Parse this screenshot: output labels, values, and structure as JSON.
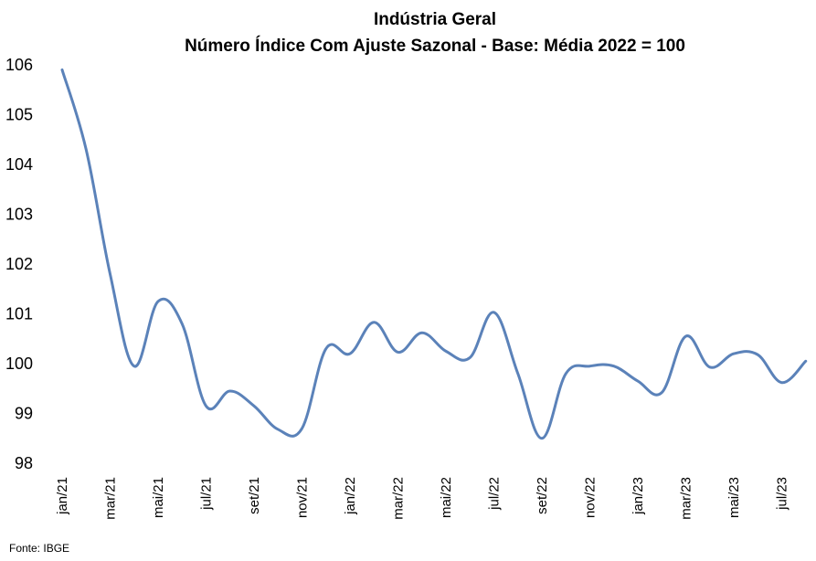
{
  "chart_data": {
    "type": "line",
    "title": "Indústria Geral",
    "subtitle": "Número Índice Com Ajuste Sazonal - Base: Média 2022 = 100",
    "source": "Fonte: IBGE",
    "ylim": [
      98,
      106
    ],
    "yticks": [
      98,
      99,
      100,
      101,
      102,
      103,
      104,
      105,
      106
    ],
    "grid": false,
    "legend": "none",
    "x": [
      "jan/21",
      "fev/21",
      "mar/21",
      "abr/21",
      "mai/21",
      "jun/21",
      "jul/21",
      "ago/21",
      "set/21",
      "out/21",
      "nov/21",
      "dez/21",
      "jan/22",
      "fev/22",
      "mar/22",
      "abr/22",
      "mai/22",
      "jun/22",
      "jul/22",
      "ago/22",
      "set/22",
      "out/22",
      "nov/22",
      "dez/22",
      "jan/23",
      "fev/23",
      "mar/23",
      "abr/23",
      "mai/23",
      "jun/23",
      "jul/23",
      "ago/23"
    ],
    "xtick_labels": [
      "jan/21",
      "mar/21",
      "mai/21",
      "jul/21",
      "set/21",
      "nov/21",
      "jan/22",
      "mar/22",
      "mai/22",
      "jul/22",
      "set/22",
      "nov/22",
      "jan/23",
      "mar/23",
      "mai/23",
      "jul/23"
    ],
    "series": [
      {
        "color": "#5b82b9",
        "values": [
          105.9,
          104.3,
          101.8,
          99.95,
          101.25,
          100.8,
          99.15,
          99.45,
          99.15,
          98.68,
          98.7,
          100.3,
          100.2,
          100.83,
          100.23,
          100.62,
          100.25,
          100.12,
          101.03,
          99.8,
          98.5,
          99.8,
          99.95,
          99.95,
          99.65,
          99.42,
          100.55,
          99.93,
          100.2,
          100.18,
          99.62,
          100.05
        ]
      }
    ]
  }
}
